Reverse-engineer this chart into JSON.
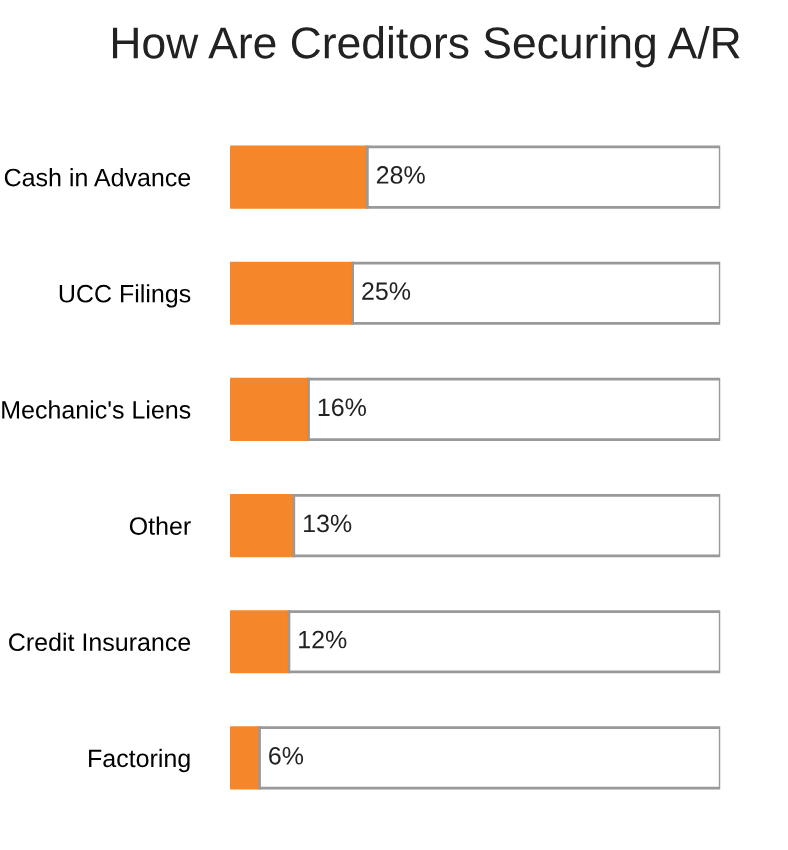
{
  "chart_data": {
    "type": "bar",
    "orientation": "horizontal",
    "stacked": true,
    "title": "How Are Creditors Securing A/R",
    "categories": [
      "Cash in Advance",
      "UCC Filings",
      "Mechanic's Liens",
      "Other",
      "Credit Insurance",
      "Factoring"
    ],
    "series": [
      {
        "color": "#f5862a",
        "values": [
          28,
          25,
          16,
          13,
          12,
          6
        ],
        "value_labels": [
          "28%",
          "25%",
          "16%",
          "13%",
          "12%",
          "6%"
        ]
      },
      {
        "color": "#ffffff",
        "values": [
          72,
          75,
          84,
          87,
          88,
          94
        ]
      }
    ],
    "xlim": [
      0,
      100
    ],
    "tick_labels": "y",
    "grid": false
  }
}
